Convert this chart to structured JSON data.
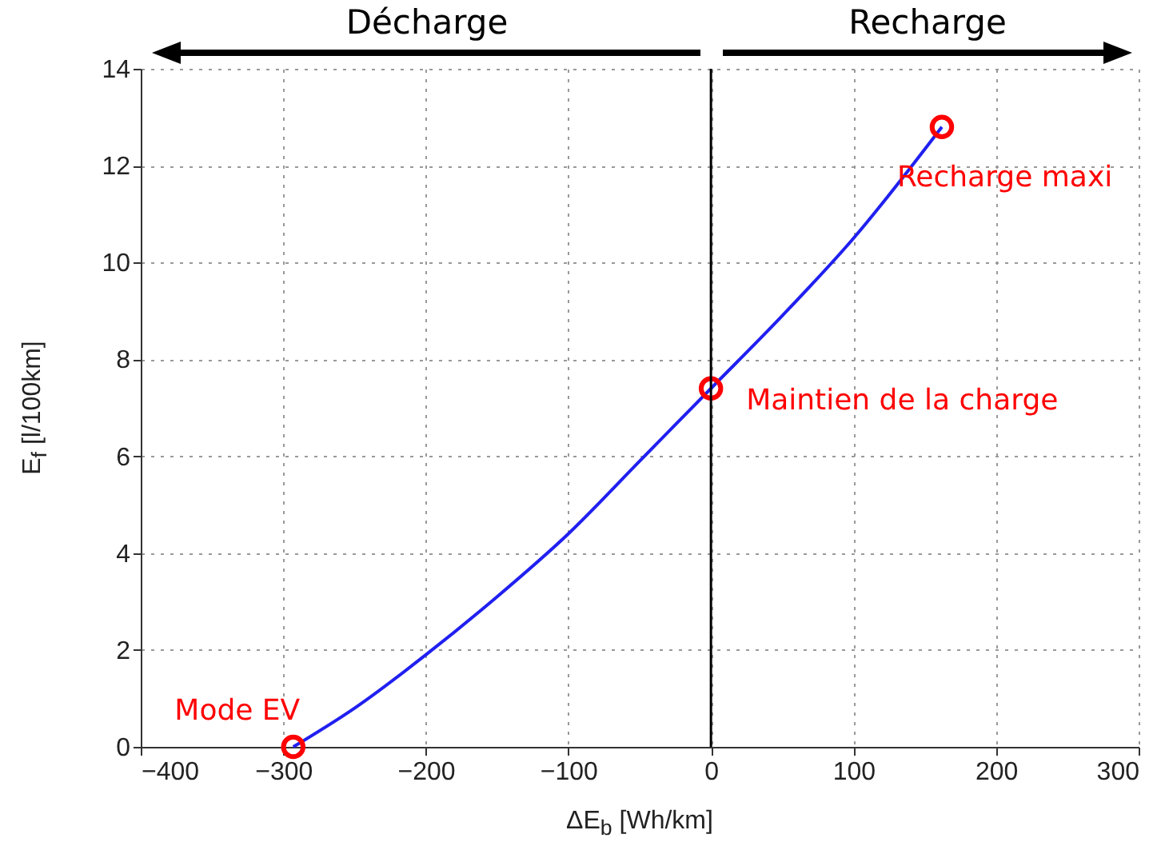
{
  "chart_data": {
    "type": "line",
    "xlabel": "ΔE$_{b}$ [Wh/km]",
    "ylabel": "E$_{f}$ [l/100km]",
    "xlim": [
      -400,
      300
    ],
    "xticks": [
      -400,
      -300,
      -200,
      -100,
      0,
      100,
      200,
      300
    ],
    "ylim": [
      0,
      14
    ],
    "yticks": [
      0,
      2,
      4,
      6,
      8,
      10,
      12,
      14
    ],
    "grid": true,
    "series": [
      {
        "color": "#2020f0",
        "x": [
          -293,
          -250,
          -200,
          -150,
          -100,
          -50,
          0,
          50,
          100,
          162
        ],
        "values": [
          0,
          0.8,
          1.9,
          3.1,
          4.4,
          5.9,
          7.4,
          8.9,
          10.5,
          12.8
        ],
        "marker": "none"
      },
      {
        "type": "scatter",
        "color": "#ff0000",
        "x": [
          -293,
          0,
          162
        ],
        "values": [
          0,
          7.4,
          12.8
        ],
        "marker": "circle"
      }
    ],
    "ref_lines": [
      {
        "axis": "x",
        "value": 0,
        "color": "#000000"
      }
    ],
    "annotations": [
      "Décharge",
      "Recharge",
      {
        "text": "Mode EV",
        "x": -293,
        "y": 0
      },
      {
        "text": "Maintien de la charge",
        "x": 0,
        "y": 7.4
      },
      {
        "text": "Recharge maxi",
        "x": 162,
        "y": 12.8
      }
    ]
  }
}
